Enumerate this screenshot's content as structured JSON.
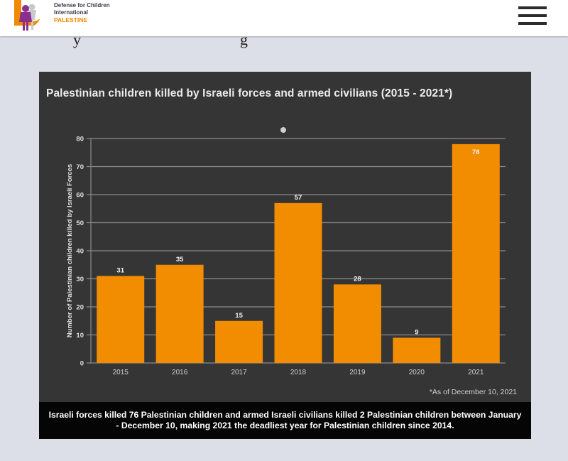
{
  "header": {
    "logo_lines": [
      "Defense for Children",
      "International",
      "PALESTINE"
    ],
    "menu_icon": "hamburger-menu-icon",
    "brand_colors": {
      "orange": "#f08a00",
      "purple": "#8b2f8f",
      "gray": "#c9c9c9"
    }
  },
  "partial_text": [
    "y",
    "g"
  ],
  "chart_data": {
    "type": "bar",
    "title": "Palestinian children killed by Israeli forces and armed civilians (2015 - 2021*)",
    "xlabel": "",
    "ylabel": "Number of Palestinian children killed by Israeli Forces",
    "categories": [
      "2015",
      "2016",
      "2017",
      "2018",
      "2019",
      "2020",
      "2021"
    ],
    "values": [
      31,
      35,
      15,
      57,
      28,
      9,
      78
    ],
    "ylim": [
      0,
      80
    ],
    "yticks": [
      0,
      10,
      20,
      30,
      40,
      50,
      60,
      70,
      80
    ],
    "grid": true,
    "bar_color": "#f28c00",
    "background": "#353535",
    "footnote": "*As of December 10, 2021"
  },
  "caption": "Israeli forces killed 76 Palestinian children and armed Israeli civilians killed 2 Palestinian children between January - December 10, making 2021 the deadliest year for Palestinian children since 2014."
}
